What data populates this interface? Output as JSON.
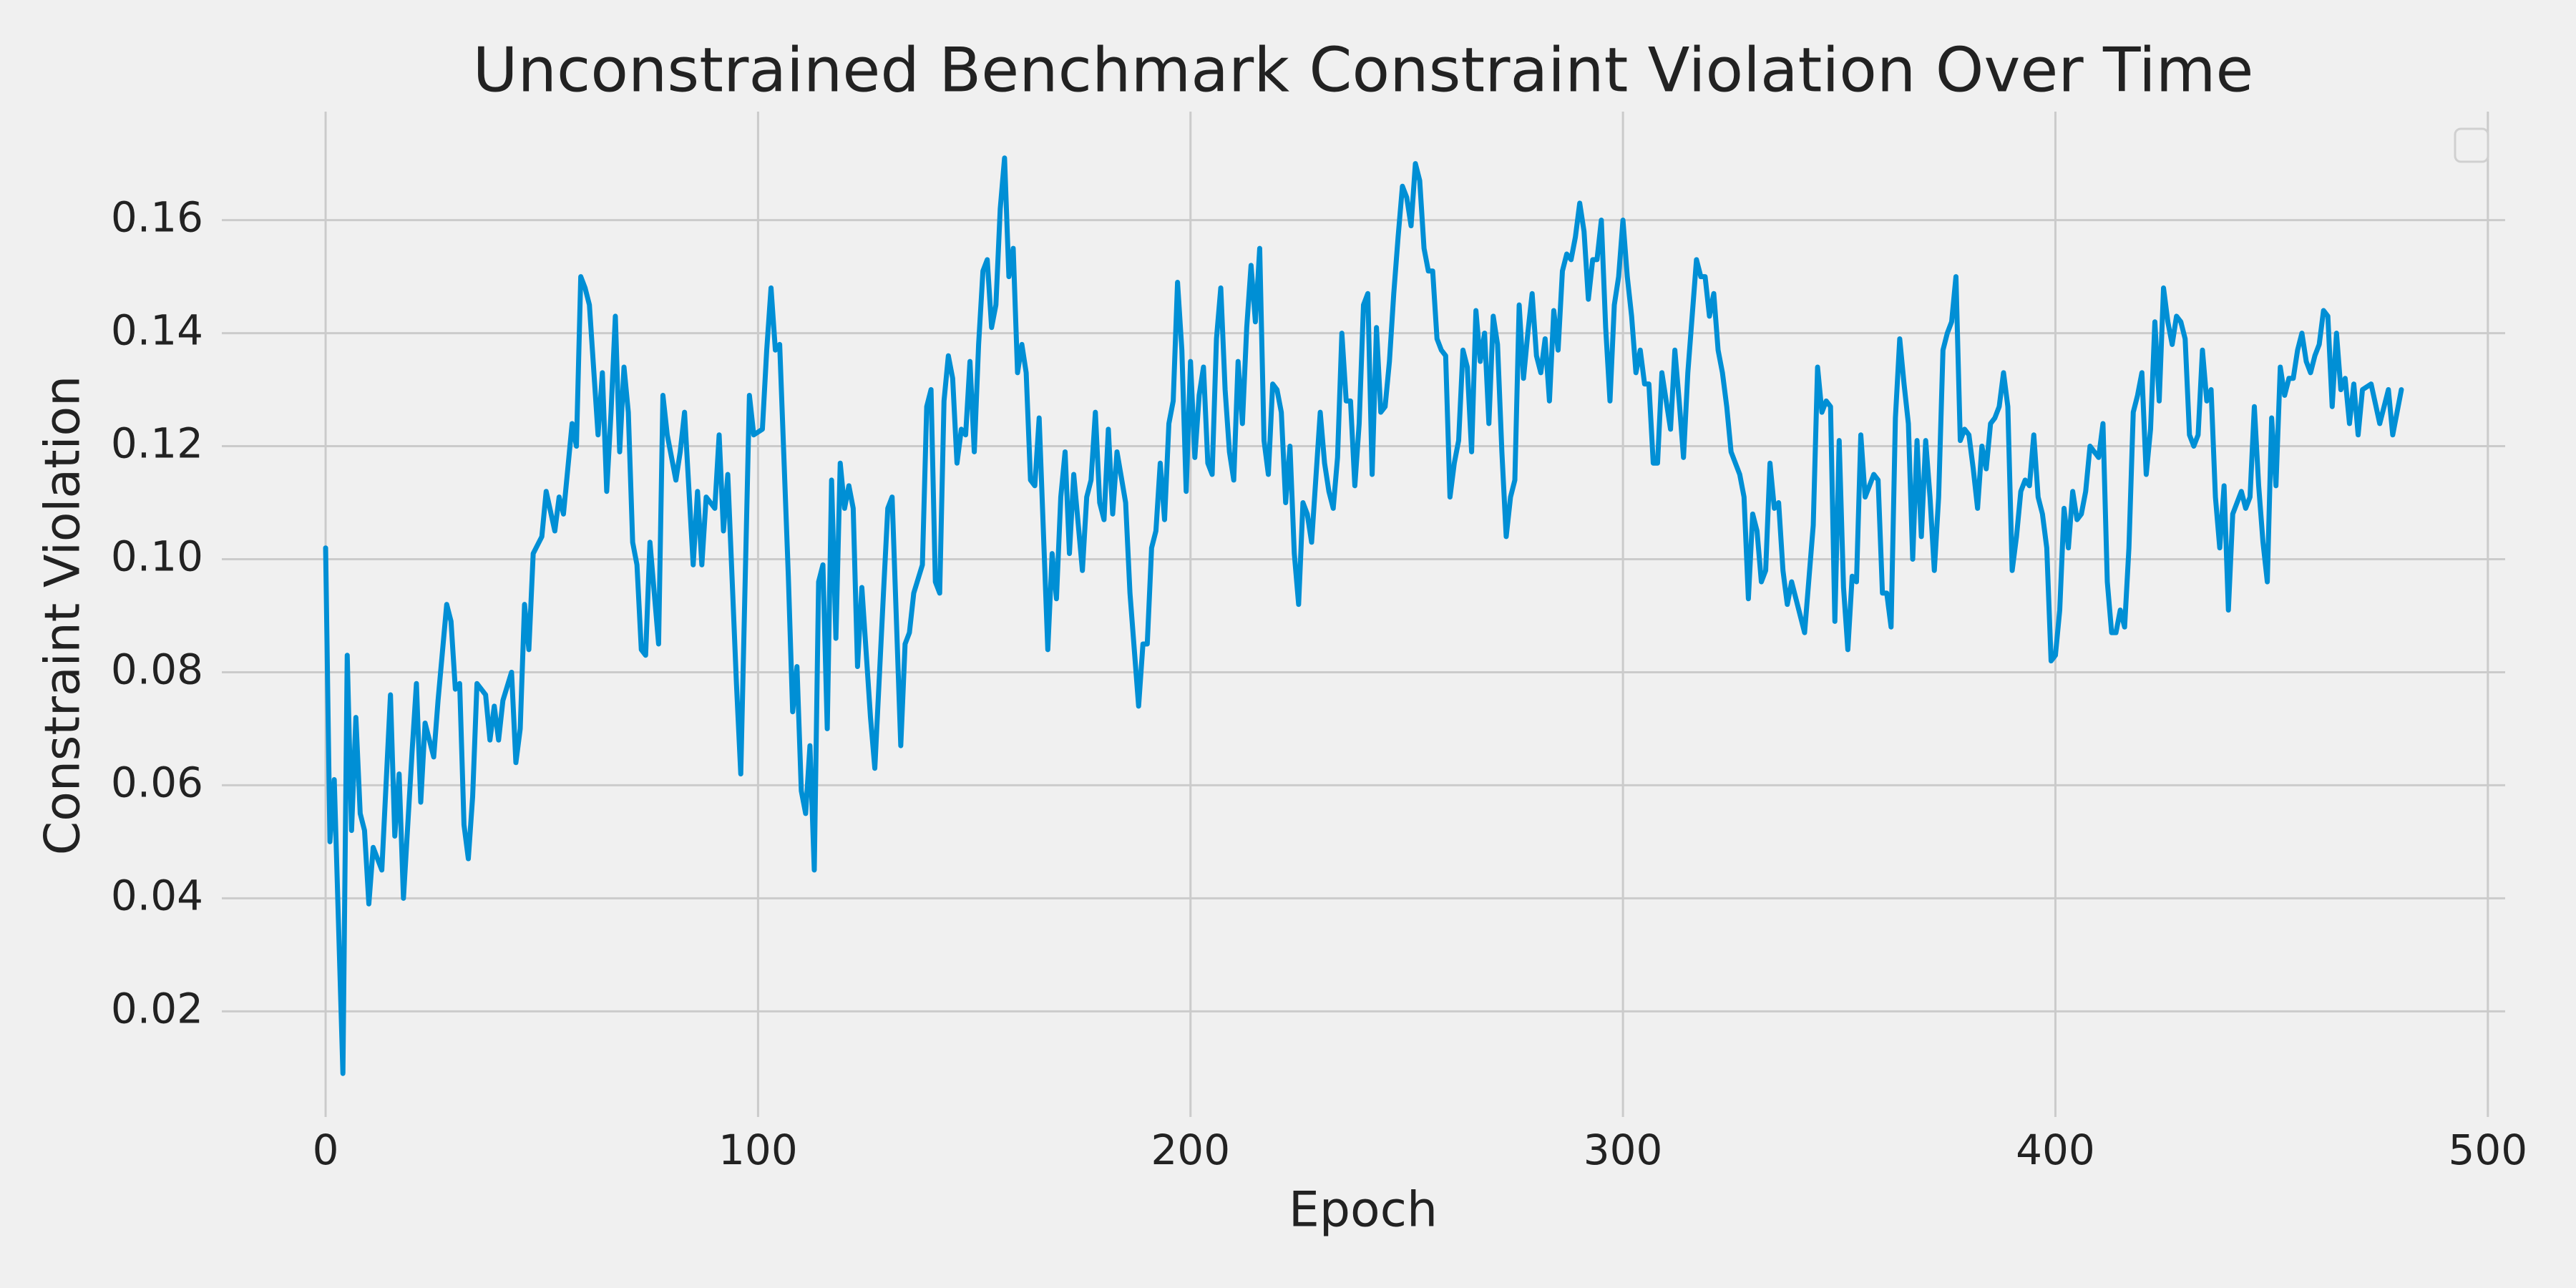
{
  "chart_data": {
    "type": "line",
    "title": "Unconstrained Benchmark Constraint Violation Over Time",
    "x_label": "Epoch",
    "y_label": "Constraint Violation",
    "color": "#008fd5",
    "grid": true,
    "xlim": [
      -24,
      504
    ],
    "xticks": [
      0,
      100,
      200,
      300,
      400,
      500
    ],
    "ylim": [
      0.0013,
      0.1792
    ],
    "yticks": [
      0.02,
      0.04,
      0.06,
      0.08,
      {
        "value": 0.1,
        "label": "0.10"
      },
      0.12,
      0.14,
      0.16
    ],
    "x": [
      0,
      1,
      2,
      4,
      5,
      6,
      7,
      8,
      9,
      10,
      11,
      13,
      15,
      16,
      17,
      18,
      20,
      21,
      22,
      23,
      25,
      26,
      28,
      29,
      30,
      31,
      32,
      33,
      34,
      35,
      37,
      38,
      39,
      40,
      41,
      43,
      44,
      45,
      46,
      47,
      48,
      50,
      51,
      53,
      54,
      55,
      57,
      58,
      59,
      60,
      61,
      63,
      64,
      65,
      66,
      67,
      68,
      69,
      70,
      71,
      72,
      73,
      74,
      75,
      77,
      78,
      79,
      81,
      82,
      83,
      85,
      86,
      87,
      88,
      90,
      91,
      92,
      93,
      95,
      96,
      98,
      99,
      101,
      102,
      103,
      104,
      105,
      107,
      108,
      109,
      110,
      111,
      112,
      113,
      114,
      115,
      116,
      117,
      118,
      119,
      120,
      121,
      122,
      123,
      124,
      126,
      127,
      129,
      130,
      131,
      133,
      134,
      135,
      136,
      138,
      139,
      140,
      141,
      142,
      143,
      144,
      145,
      146,
      147,
      148,
      149,
      150,
      151,
      152,
      153,
      154,
      155,
      156,
      157,
      158,
      159,
      160,
      161,
      162,
      163,
      164,
      165,
      167,
      168,
      169,
      170,
      171,
      172,
      173,
      175,
      176,
      177,
      178,
      179,
      180,
      181,
      182,
      183,
      185,
      186,
      188,
      189,
      190,
      191,
      192,
      193,
      194,
      195,
      196,
      197,
      198,
      199,
      200,
      201,
      202,
      203,
      204,
      205,
      206,
      207,
      208,
      209,
      210,
      211,
      212,
      213,
      214,
      215,
      216,
      217,
      218,
      219,
      220,
      221,
      222,
      223,
      224,
      225,
      226,
      227,
      228,
      230,
      231,
      232,
      233,
      234,
      235,
      236,
      237,
      238,
      239,
      240,
      241,
      242,
      243,
      244,
      245,
      246,
      247,
      248,
      249,
      250,
      251,
      252,
      253,
      254,
      255,
      256,
      257,
      258,
      259,
      260,
      261,
      262,
      263,
      264,
      265,
      266,
      267,
      268,
      269,
      270,
      271,
      272,
      273,
      274,
      275,
      276,
      277,
      278,
      279,
      280,
      281,
      282,
      283,
      284,
      285,
      286,
      287,
      288,
      289,
      290,
      291,
      292,
      293,
      294,
      295,
      296,
      297,
      298,
      299,
      300,
      301,
      302,
      303,
      304,
      305,
      306,
      307,
      308,
      309,
      310,
      311,
      312,
      313,
      314,
      315,
      317,
      318,
      319,
      320,
      321,
      322,
      323,
      324,
      325,
      326,
      327,
      328,
      329,
      330,
      331,
      332,
      333,
      334,
      335,
      336,
      337,
      338,
      339,
      340,
      341,
      342,
      344,
      345,
      346,
      347,
      348,
      349,
      350,
      351,
      352,
      353,
      354,
      355,
      356,
      357,
      358,
      359,
      360,
      361,
      362,
      363,
      364,
      365,
      366,
      367,
      368,
      369,
      370,
      371,
      372,
      373,
      374,
      375,
      376,
      377,
      378,
      379,
      380,
      381,
      382,
      383,
      384,
      385,
      386,
      387,
      388,
      389,
      390,
      391,
      392,
      393,
      394,
      395,
      396,
      397,
      398,
      399,
      400,
      401,
      402,
      403,
      404,
      405,
      406,
      407,
      408,
      409,
      410,
      411,
      412,
      413,
      414,
      415,
      416,
      417,
      418,
      419,
      420,
      421,
      422,
      423,
      424,
      425,
      426,
      427,
      428,
      429,
      430,
      431,
      432,
      433,
      434,
      435,
      436,
      437,
      438,
      439,
      440,
      441,
      442,
      443,
      444,
      445,
      446,
      447,
      448,
      449,
      450,
      451,
      452,
      453,
      454,
      455,
      456,
      457,
      458,
      459,
      460,
      461,
      462,
      463,
      464,
      465,
      466,
      467,
      468,
      469,
      470,
      471,
      473,
      475,
      477,
      478,
      480
    ],
    "values": [
      0.102,
      0.05,
      0.061,
      0.009,
      0.083,
      0.052,
      0.072,
      0.055,
      0.052,
      0.039,
      0.049,
      0.045,
      0.076,
      0.051,
      0.062,
      0.04,
      0.066,
      0.078,
      0.057,
      0.071,
      0.065,
      0.075,
      0.092,
      0.089,
      0.077,
      0.078,
      0.053,
      0.047,
      0.058,
      0.078,
      0.076,
      0.068,
      0.074,
      0.068,
      0.075,
      0.08,
      0.064,
      0.07,
      0.092,
      0.084,
      0.101,
      0.104,
      0.112,
      0.105,
      0.111,
      0.108,
      0.124,
      0.12,
      0.15,
      0.148,
      0.145,
      0.122,
      0.133,
      0.112,
      0.126,
      0.143,
      0.119,
      0.134,
      0.126,
      0.103,
      0.099,
      0.084,
      0.083,
      0.103,
      0.085,
      0.129,
      0.122,
      0.114,
      0.119,
      0.126,
      0.099,
      0.112,
      0.099,
      0.111,
      0.109,
      0.122,
      0.105,
      0.115,
      0.078,
      0.062,
      0.129,
      0.122,
      0.123,
      0.137,
      0.148,
      0.137,
      0.138,
      0.097,
      0.073,
      0.081,
      0.059,
      0.055,
      0.067,
      0.045,
      0.096,
      0.099,
      0.07,
      0.114,
      0.086,
      0.117,
      0.109,
      0.113,
      0.109,
      0.081,
      0.095,
      0.072,
      0.063,
      0.094,
      0.109,
      0.111,
      0.067,
      0.085,
      0.087,
      0.094,
      0.099,
      0.127,
      0.13,
      0.096,
      0.094,
      0.128,
      0.136,
      0.132,
      0.117,
      0.123,
      0.122,
      0.135,
      0.119,
      0.138,
      0.151,
      0.153,
      0.141,
      0.145,
      0.162,
      0.171,
      0.15,
      0.155,
      0.133,
      0.138,
      0.133,
      0.114,
      0.113,
      0.125,
      0.084,
      0.101,
      0.093,
      0.111,
      0.119,
      0.101,
      0.115,
      0.098,
      0.111,
      0.114,
      0.126,
      0.11,
      0.107,
      0.123,
      0.108,
      0.119,
      0.11,
      0.094,
      0.074,
      0.085,
      0.085,
      0.102,
      0.105,
      0.117,
      0.107,
      0.124,
      0.128,
      0.149,
      0.137,
      0.112,
      0.135,
      0.118,
      0.129,
      0.134,
      0.117,
      0.115,
      0.139,
      0.148,
      0.13,
      0.119,
      0.114,
      0.135,
      0.124,
      0.141,
      0.152,
      0.142,
      0.155,
      0.121,
      0.115,
      0.131,
      0.13,
      0.126,
      0.11,
      0.12,
      0.101,
      0.092,
      0.11,
      0.108,
      0.103,
      0.126,
      0.117,
      0.112,
      0.109,
      0.118,
      0.14,
      0.128,
      0.128,
      0.113,
      0.124,
      0.145,
      0.147,
      0.115,
      0.141,
      0.126,
      0.127,
      0.135,
      0.147,
      0.157,
      0.166,
      0.164,
      0.159,
      0.17,
      0.167,
      0.155,
      0.151,
      0.151,
      0.139,
      0.137,
      0.136,
      0.111,
      0.117,
      0.121,
      0.137,
      0.134,
      0.119,
      0.144,
      0.135,
      0.14,
      0.124,
      0.143,
      0.138,
      0.119,
      0.104,
      0.111,
      0.114,
      0.145,
      0.132,
      0.14,
      0.147,
      0.136,
      0.133,
      0.139,
      0.128,
      0.144,
      0.137,
      0.151,
      0.154,
      0.153,
      0.157,
      0.163,
      0.158,
      0.146,
      0.153,
      0.153,
      0.16,
      0.141,
      0.128,
      0.145,
      0.15,
      0.16,
      0.15,
      0.143,
      0.133,
      0.137,
      0.131,
      0.131,
      0.117,
      0.117,
      0.133,
      0.128,
      0.123,
      0.137,
      0.128,
      0.118,
      0.133,
      0.153,
      0.15,
      0.15,
      0.143,
      0.147,
      0.137,
      0.133,
      0.127,
      0.119,
      0.117,
      0.115,
      0.111,
      0.093,
      0.108,
      0.105,
      0.096,
      0.098,
      0.117,
      0.109,
      0.11,
      0.098,
      0.092,
      0.096,
      0.093,
      0.09,
      0.087,
      0.106,
      0.134,
      0.126,
      0.128,
      0.127,
      0.089,
      0.121,
      0.095,
      0.084,
      0.097,
      0.096,
      0.122,
      0.111,
      0.113,
      0.115,
      0.114,
      0.094,
      0.094,
      0.088,
      0.125,
      0.139,
      0.131,
      0.124,
      0.1,
      0.121,
      0.104,
      0.121,
      0.111,
      0.098,
      0.111,
      0.137,
      0.14,
      0.142,
      0.15,
      0.121,
      0.123,
      0.122,
      0.116,
      0.109,
      0.12,
      0.116,
      0.124,
      0.125,
      0.127,
      0.133,
      0.127,
      0.098,
      0.104,
      0.112,
      0.114,
      0.113,
      0.122,
      0.111,
      0.108,
      0.102,
      0.082,
      0.083,
      0.091,
      0.109,
      0.102,
      0.112,
      0.107,
      0.108,
      0.112,
      0.12,
      0.119,
      0.118,
      0.124,
      0.096,
      0.087,
      0.087,
      0.091,
      0.088,
      0.102,
      0.126,
      0.129,
      0.133,
      0.115,
      0.123,
      0.142,
      0.128,
      0.148,
      0.142,
      0.138,
      0.143,
      0.142,
      0.139,
      0.122,
      0.12,
      0.122,
      0.137,
      0.128,
      0.13,
      0.111,
      0.102,
      0.113,
      0.091,
      0.108,
      0.11,
      0.112,
      0.109,
      0.111,
      0.127,
      0.113,
      0.103,
      0.096,
      0.125,
      0.113,
      0.134,
      0.129,
      0.132,
      0.132,
      0.137,
      0.14,
      0.135,
      0.133,
      0.136,
      0.138,
      0.144,
      0.143,
      0.127,
      0.14,
      0.13,
      0.132,
      0.124,
      0.131,
      0.122,
      0.13,
      0.131,
      0.124,
      0.13,
      0.122,
      0.13
    ]
  }
}
